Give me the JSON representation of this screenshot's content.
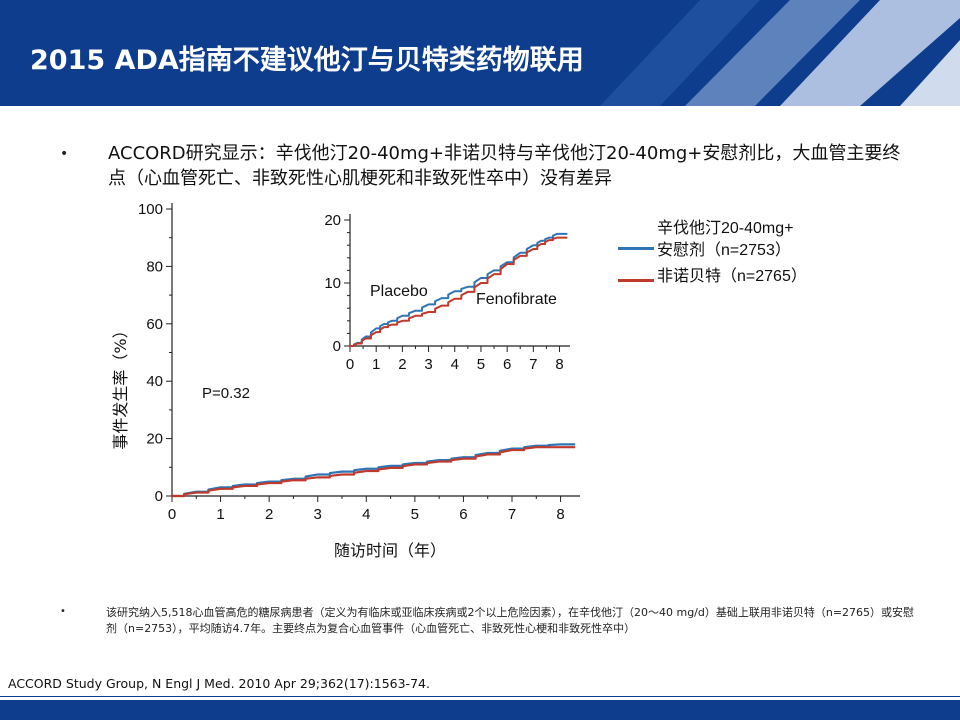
{
  "header": {
    "title": "2015 ADA指南不建议他汀与贝特类药物联用"
  },
  "main": {
    "text": "ACCORD研究显示：辛伐他汀20-40mg+非诺贝特与辛伐他汀20-40mg+安慰剂比，大血管主要终点（心血管死亡、非致死性心肌梗死和非致死性卒中）没有差异"
  },
  "legend": {
    "placebo_line1": "辛伐他汀20-40mg+",
    "placebo_line2": "安慰剂（n=2753）",
    "fenofibrate": "非诺贝特（n=2765）",
    "placebo_color": "#2e75b6",
    "fenofibrate_color": "#c0392b"
  },
  "footnote": "该研究纳入5,518心血管高危的糖尿病患者（定义为有临床或亚临床疾病或2个以上危险因素），在辛伐他汀（20～40 mg/d）基础上联用非诺贝特（n=2765）或安慰剂（n=2753），平均随访4.7年。主要终点为复合心血管事件（心血管死亡、非致死性心梗和非致死性卒中）",
  "citation": "ACCORD Study Group, N Engl J Med. 2010 Apr 29;362(17):1563-74.",
  "chart_data": [
    {
      "type": "line",
      "xlabel": "随访时间（年）",
      "ylabel": "事件发生率（%）",
      "xlim": [
        0,
        8.4
      ],
      "ylim": [
        0,
        100
      ],
      "x_ticks": [
        "0",
        "1",
        "2",
        "3",
        "4",
        "5",
        "6",
        "7",
        "8"
      ],
      "y_ticks": [
        "0",
        "20",
        "40",
        "60",
        "80",
        "100"
      ],
      "annotation": "P=0.32",
      "series": [
        {
          "name": "Placebo",
          "color": "#2e75b6",
          "x": [
            0,
            0.5,
            1,
            1.5,
            2,
            2.5,
            3,
            3.5,
            4,
            4.5,
            5,
            5.5,
            6,
            6.5,
            7,
            7.5,
            8,
            8.3
          ],
          "y": [
            0,
            1.5,
            3,
            4,
            5,
            6,
            7.5,
            8.5,
            9.5,
            10.5,
            11.5,
            12.5,
            13.5,
            15,
            16.5,
            17.5,
            18,
            18
          ]
        },
        {
          "name": "Fenofibrate",
          "color": "#c0392b",
          "x": [
            0,
            0.5,
            1,
            1.5,
            2,
            2.5,
            3,
            3.5,
            4,
            4.5,
            5,
            5.5,
            6,
            6.5,
            7,
            7.5,
            8,
            8.3
          ],
          "y": [
            0,
            1.2,
            2.5,
            3.5,
            4.5,
            5.5,
            6.5,
            7.5,
            8.7,
            9.8,
            11,
            12,
            13,
            14.5,
            16,
            17,
            17,
            17
          ]
        }
      ]
    },
    {
      "type": "line",
      "xlim": [
        0,
        8.4
      ],
      "ylim": [
        0,
        20
      ],
      "x_ticks": [
        "0",
        "1",
        "2",
        "3",
        "4",
        "5",
        "6",
        "7",
        "8"
      ],
      "y_ticks": [
        "0",
        "10",
        "20"
      ],
      "series": [
        {
          "name": "Placebo",
          "color": "#2e75b6",
          "x": [
            0,
            0.3,
            0.6,
            1,
            1.3,
            1.6,
            2,
            2.5,
            3,
            3.5,
            4,
            4.5,
            5,
            5.5,
            6,
            6.5,
            7,
            7.3,
            7.6,
            7.9,
            8.3
          ],
          "y": [
            0,
            0.5,
            1.5,
            2.8,
            3.5,
            4.0,
            4.8,
            5.6,
            6.6,
            7.6,
            8.7,
            9.4,
            10.8,
            12.0,
            13.3,
            14.8,
            16.0,
            16.7,
            17.2,
            17.8,
            17.8
          ]
        },
        {
          "name": "Fenofibrate",
          "color": "#c0392b",
          "x": [
            0,
            0.3,
            0.6,
            1,
            1.3,
            1.6,
            2,
            2.5,
            3,
            3.5,
            4,
            4.5,
            5,
            5.5,
            6,
            6.5,
            7,
            7.3,
            7.6,
            7.9,
            8.3
          ],
          "y": [
            0,
            0.4,
            1.2,
            2.2,
            3.0,
            3.4,
            4.0,
            4.8,
            5.4,
            6.4,
            7.5,
            8.6,
            10.0,
            11.4,
            13.0,
            14.3,
            15.4,
            16.2,
            16.8,
            17.2,
            17.2
          ]
        }
      ],
      "labels": [
        "Placebo",
        "Fenofibrate"
      ]
    }
  ]
}
